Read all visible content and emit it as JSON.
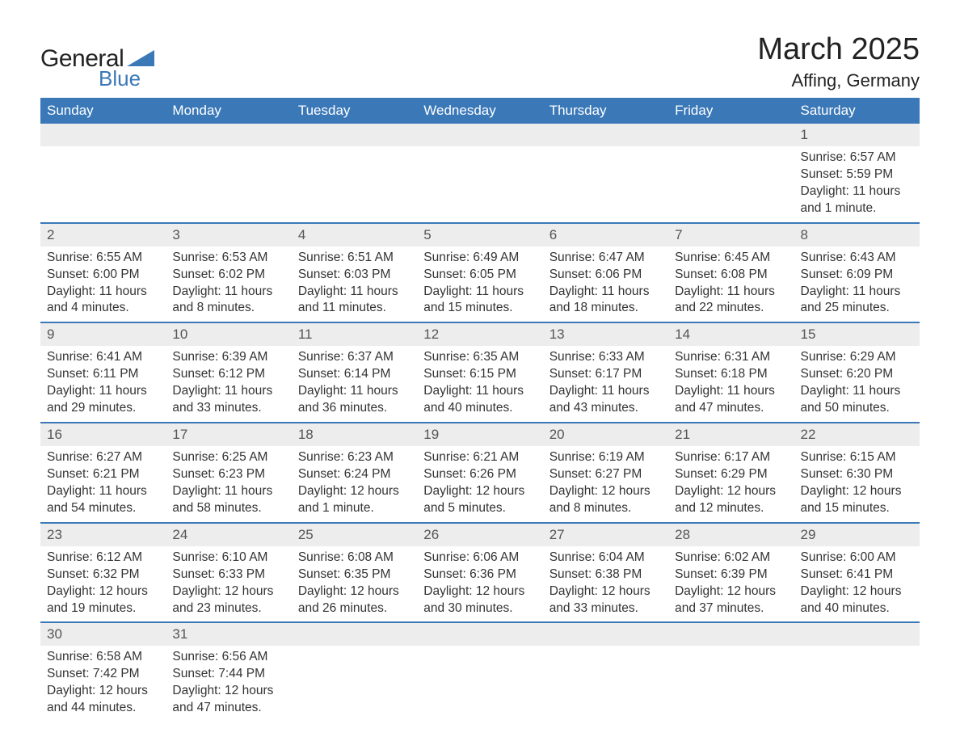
{
  "brand": {
    "name1": "General",
    "name2": "Blue",
    "triangle_color": "#3a78b8"
  },
  "title": {
    "month_year": "March 2025",
    "location": "Affing, Germany"
  },
  "colors": {
    "header_bg": "#3a78b8",
    "header_text": "#ffffff",
    "daynum_bg": "#ededed",
    "daynum_text": "#555555",
    "body_text": "#333333",
    "week_border": "#3a78b8",
    "page_bg": "#ffffff"
  },
  "typography": {
    "month_title_fontsize": 38,
    "location_fontsize": 22,
    "dayheader_fontsize": 17,
    "daynum_fontsize": 17,
    "detail_fontsize": 15.5,
    "font_family": "Arial"
  },
  "day_headers": [
    "Sunday",
    "Monday",
    "Tuesday",
    "Wednesday",
    "Thursday",
    "Friday",
    "Saturday"
  ],
  "weeks": [
    [
      {
        "num": "",
        "sunrise": "",
        "sunset": "",
        "daylight": ""
      },
      {
        "num": "",
        "sunrise": "",
        "sunset": "",
        "daylight": ""
      },
      {
        "num": "",
        "sunrise": "",
        "sunset": "",
        "daylight": ""
      },
      {
        "num": "",
        "sunrise": "",
        "sunset": "",
        "daylight": ""
      },
      {
        "num": "",
        "sunrise": "",
        "sunset": "",
        "daylight": ""
      },
      {
        "num": "",
        "sunrise": "",
        "sunset": "",
        "daylight": ""
      },
      {
        "num": "1",
        "sunrise": "Sunrise: 6:57 AM",
        "sunset": "Sunset: 5:59 PM",
        "daylight": "Daylight: 11 hours and 1 minute."
      }
    ],
    [
      {
        "num": "2",
        "sunrise": "Sunrise: 6:55 AM",
        "sunset": "Sunset: 6:00 PM",
        "daylight": "Daylight: 11 hours and 4 minutes."
      },
      {
        "num": "3",
        "sunrise": "Sunrise: 6:53 AM",
        "sunset": "Sunset: 6:02 PM",
        "daylight": "Daylight: 11 hours and 8 minutes."
      },
      {
        "num": "4",
        "sunrise": "Sunrise: 6:51 AM",
        "sunset": "Sunset: 6:03 PM",
        "daylight": "Daylight: 11 hours and 11 minutes."
      },
      {
        "num": "5",
        "sunrise": "Sunrise: 6:49 AM",
        "sunset": "Sunset: 6:05 PM",
        "daylight": "Daylight: 11 hours and 15 minutes."
      },
      {
        "num": "6",
        "sunrise": "Sunrise: 6:47 AM",
        "sunset": "Sunset: 6:06 PM",
        "daylight": "Daylight: 11 hours and 18 minutes."
      },
      {
        "num": "7",
        "sunrise": "Sunrise: 6:45 AM",
        "sunset": "Sunset: 6:08 PM",
        "daylight": "Daylight: 11 hours and 22 minutes."
      },
      {
        "num": "8",
        "sunrise": "Sunrise: 6:43 AM",
        "sunset": "Sunset: 6:09 PM",
        "daylight": "Daylight: 11 hours and 25 minutes."
      }
    ],
    [
      {
        "num": "9",
        "sunrise": "Sunrise: 6:41 AM",
        "sunset": "Sunset: 6:11 PM",
        "daylight": "Daylight: 11 hours and 29 minutes."
      },
      {
        "num": "10",
        "sunrise": "Sunrise: 6:39 AM",
        "sunset": "Sunset: 6:12 PM",
        "daylight": "Daylight: 11 hours and 33 minutes."
      },
      {
        "num": "11",
        "sunrise": "Sunrise: 6:37 AM",
        "sunset": "Sunset: 6:14 PM",
        "daylight": "Daylight: 11 hours and 36 minutes."
      },
      {
        "num": "12",
        "sunrise": "Sunrise: 6:35 AM",
        "sunset": "Sunset: 6:15 PM",
        "daylight": "Daylight: 11 hours and 40 minutes."
      },
      {
        "num": "13",
        "sunrise": "Sunrise: 6:33 AM",
        "sunset": "Sunset: 6:17 PM",
        "daylight": "Daylight: 11 hours and 43 minutes."
      },
      {
        "num": "14",
        "sunrise": "Sunrise: 6:31 AM",
        "sunset": "Sunset: 6:18 PM",
        "daylight": "Daylight: 11 hours and 47 minutes."
      },
      {
        "num": "15",
        "sunrise": "Sunrise: 6:29 AM",
        "sunset": "Sunset: 6:20 PM",
        "daylight": "Daylight: 11 hours and 50 minutes."
      }
    ],
    [
      {
        "num": "16",
        "sunrise": "Sunrise: 6:27 AM",
        "sunset": "Sunset: 6:21 PM",
        "daylight": "Daylight: 11 hours and 54 minutes."
      },
      {
        "num": "17",
        "sunrise": "Sunrise: 6:25 AM",
        "sunset": "Sunset: 6:23 PM",
        "daylight": "Daylight: 11 hours and 58 minutes."
      },
      {
        "num": "18",
        "sunrise": "Sunrise: 6:23 AM",
        "sunset": "Sunset: 6:24 PM",
        "daylight": "Daylight: 12 hours and 1 minute."
      },
      {
        "num": "19",
        "sunrise": "Sunrise: 6:21 AM",
        "sunset": "Sunset: 6:26 PM",
        "daylight": "Daylight: 12 hours and 5 minutes."
      },
      {
        "num": "20",
        "sunrise": "Sunrise: 6:19 AM",
        "sunset": "Sunset: 6:27 PM",
        "daylight": "Daylight: 12 hours and 8 minutes."
      },
      {
        "num": "21",
        "sunrise": "Sunrise: 6:17 AM",
        "sunset": "Sunset: 6:29 PM",
        "daylight": "Daylight: 12 hours and 12 minutes."
      },
      {
        "num": "22",
        "sunrise": "Sunrise: 6:15 AM",
        "sunset": "Sunset: 6:30 PM",
        "daylight": "Daylight: 12 hours and 15 minutes."
      }
    ],
    [
      {
        "num": "23",
        "sunrise": "Sunrise: 6:12 AM",
        "sunset": "Sunset: 6:32 PM",
        "daylight": "Daylight: 12 hours and 19 minutes."
      },
      {
        "num": "24",
        "sunrise": "Sunrise: 6:10 AM",
        "sunset": "Sunset: 6:33 PM",
        "daylight": "Daylight: 12 hours and 23 minutes."
      },
      {
        "num": "25",
        "sunrise": "Sunrise: 6:08 AM",
        "sunset": "Sunset: 6:35 PM",
        "daylight": "Daylight: 12 hours and 26 minutes."
      },
      {
        "num": "26",
        "sunrise": "Sunrise: 6:06 AM",
        "sunset": "Sunset: 6:36 PM",
        "daylight": "Daylight: 12 hours and 30 minutes."
      },
      {
        "num": "27",
        "sunrise": "Sunrise: 6:04 AM",
        "sunset": "Sunset: 6:38 PM",
        "daylight": "Daylight: 12 hours and 33 minutes."
      },
      {
        "num": "28",
        "sunrise": "Sunrise: 6:02 AM",
        "sunset": "Sunset: 6:39 PM",
        "daylight": "Daylight: 12 hours and 37 minutes."
      },
      {
        "num": "29",
        "sunrise": "Sunrise: 6:00 AM",
        "sunset": "Sunset: 6:41 PM",
        "daylight": "Daylight: 12 hours and 40 minutes."
      }
    ],
    [
      {
        "num": "30",
        "sunrise": "Sunrise: 6:58 AM",
        "sunset": "Sunset: 7:42 PM",
        "daylight": "Daylight: 12 hours and 44 minutes."
      },
      {
        "num": "31",
        "sunrise": "Sunrise: 6:56 AM",
        "sunset": "Sunset: 7:44 PM",
        "daylight": "Daylight: 12 hours and 47 minutes."
      },
      {
        "num": "",
        "sunrise": "",
        "sunset": "",
        "daylight": ""
      },
      {
        "num": "",
        "sunrise": "",
        "sunset": "",
        "daylight": ""
      },
      {
        "num": "",
        "sunrise": "",
        "sunset": "",
        "daylight": ""
      },
      {
        "num": "",
        "sunrise": "",
        "sunset": "",
        "daylight": ""
      },
      {
        "num": "",
        "sunrise": "",
        "sunset": "",
        "daylight": ""
      }
    ]
  ]
}
